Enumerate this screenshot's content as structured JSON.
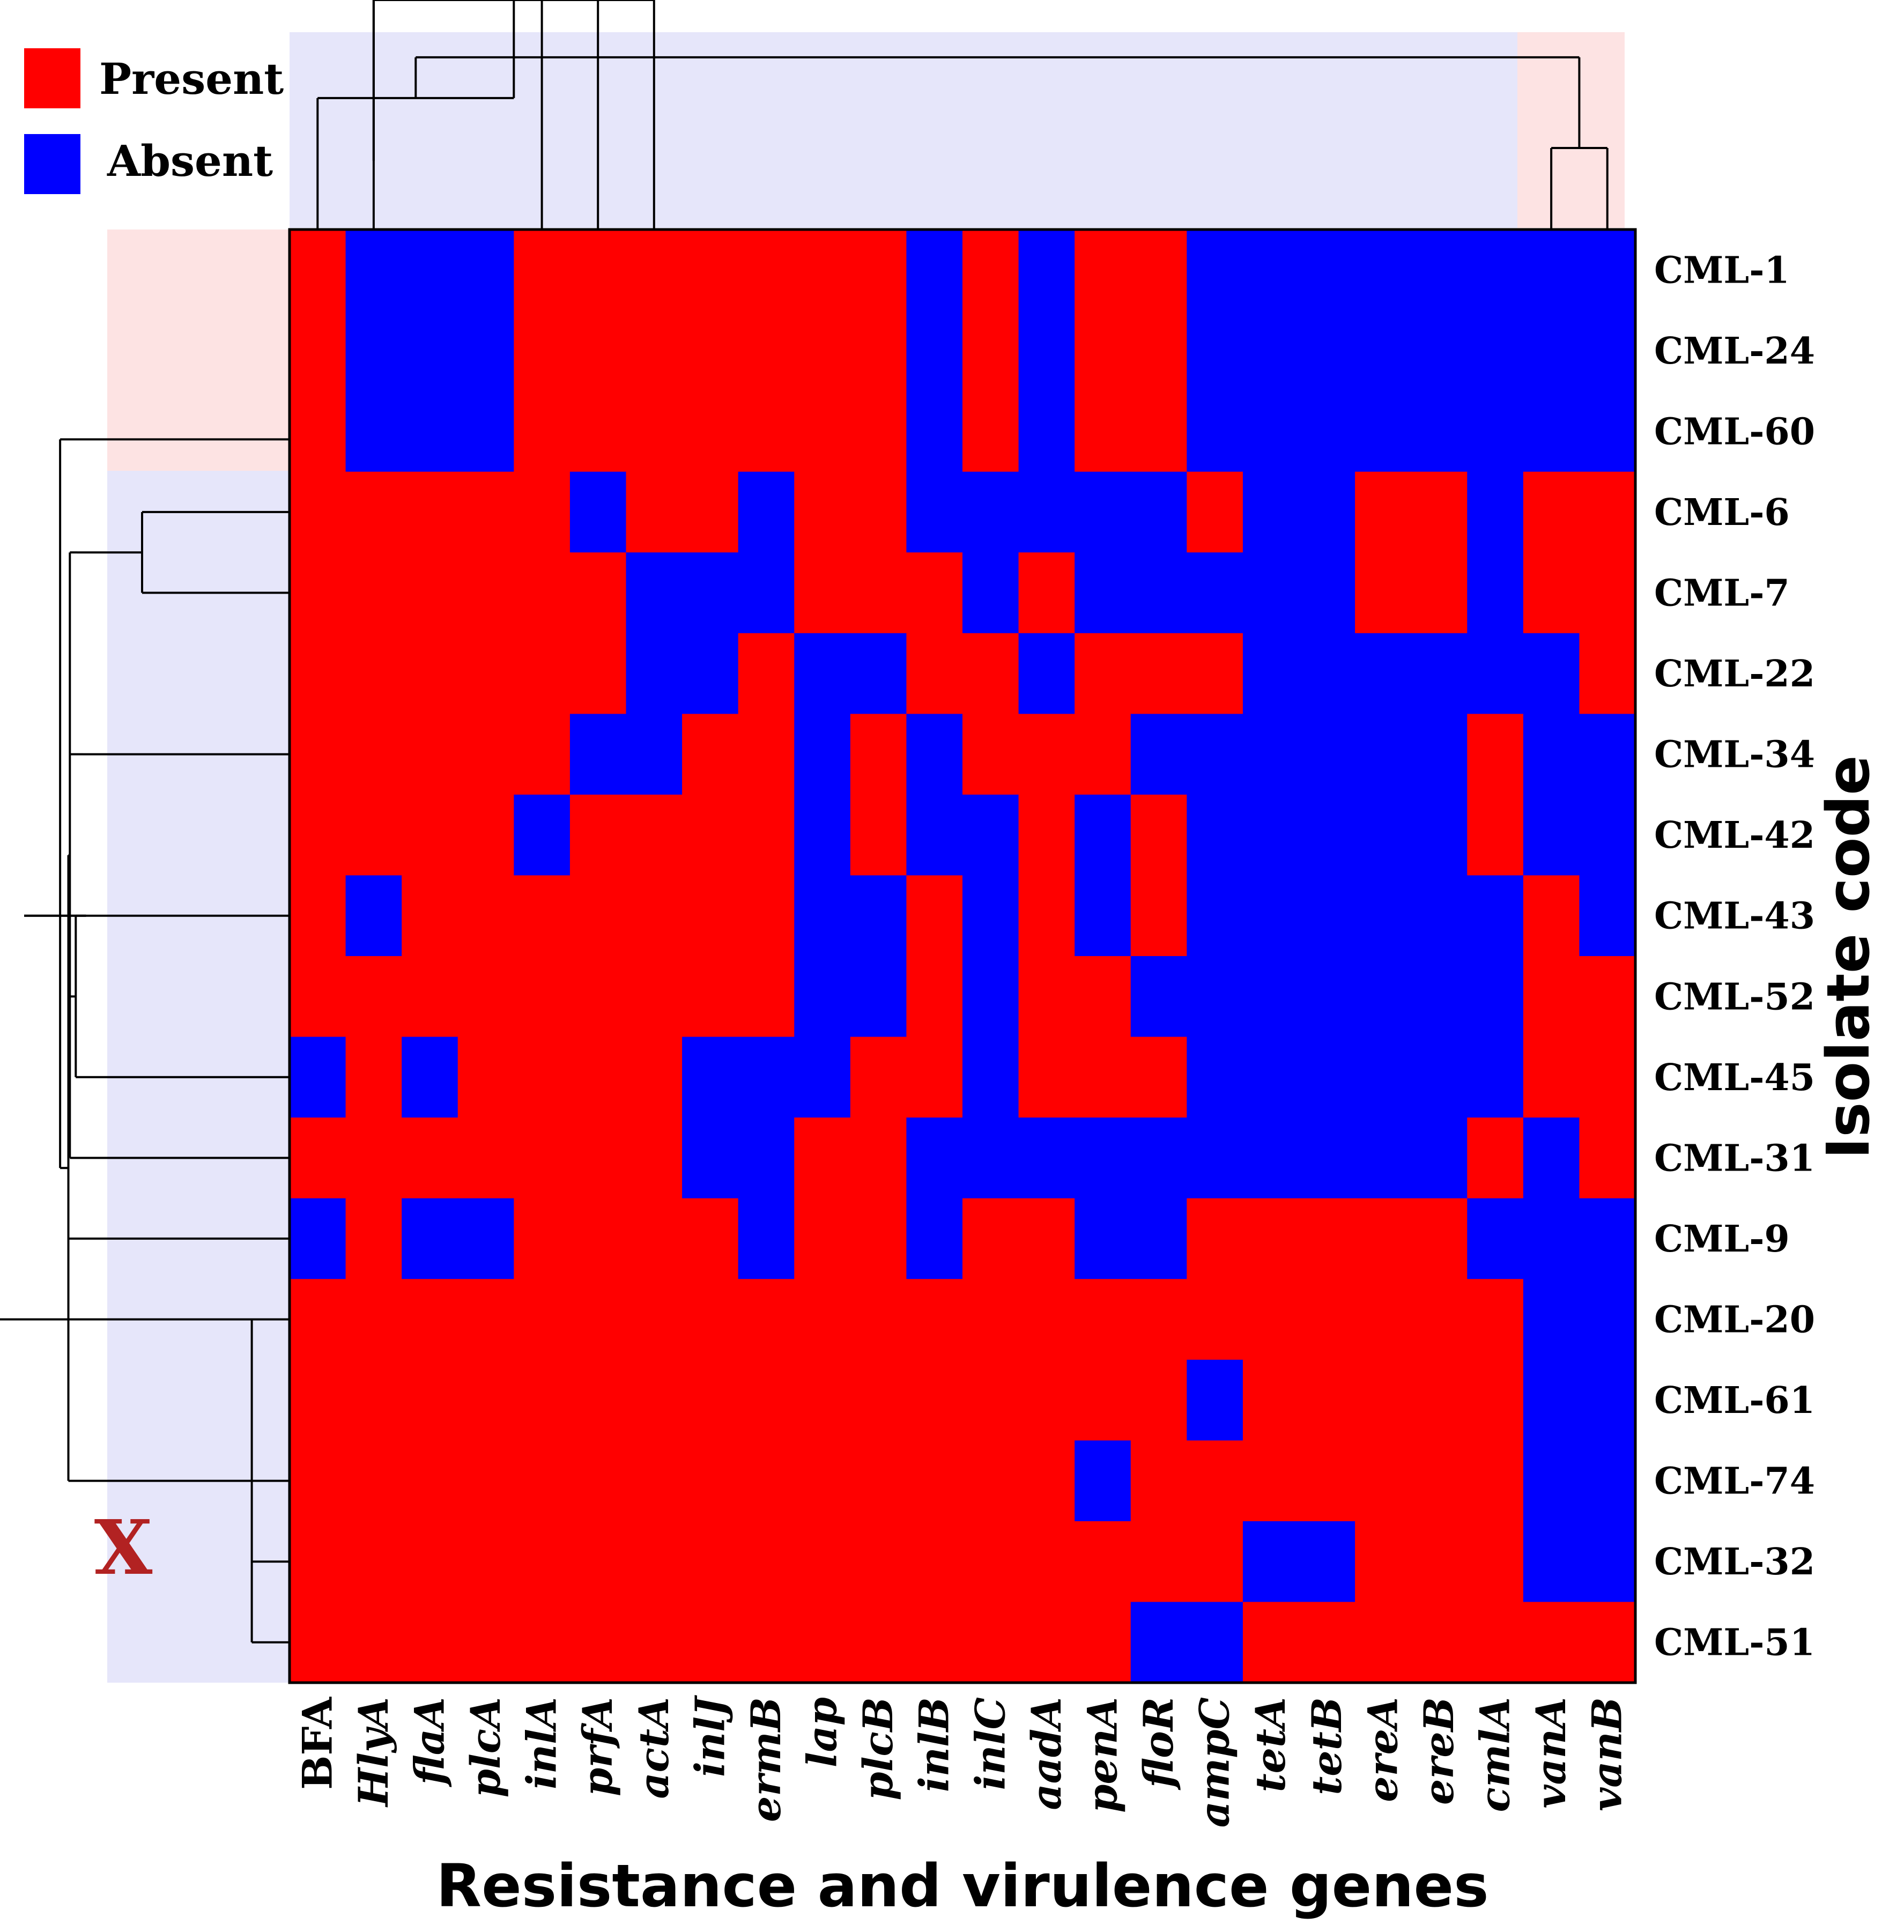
{
  "chart_data": {
    "type": "heatmap",
    "xlabel": "Resistance and virulence genes",
    "ylabel": "Isolate code",
    "columns": [
      "BFA",
      "HlyA",
      "flaA",
      "plcA",
      "inlA",
      "prfA",
      "actA",
      "inlJ",
      "ermB",
      "lap",
      "plcB",
      "inlB",
      "inlC",
      "aadA",
      "penA",
      "floR",
      "ampC",
      "tetA",
      "tetB",
      "ereA",
      "ereB",
      "cmlA",
      "vanA",
      "vanB"
    ],
    "italic_columns": [
      "HlyA",
      "flaA",
      "plcA",
      "inlA",
      "prfA",
      "actA",
      "inlJ",
      "ermB",
      "lap",
      "plcB",
      "inlB",
      "inlC",
      "aadA",
      "penA",
      "floR",
      "ampC",
      "tetA",
      "tetB",
      "ereA",
      "ereB",
      "cmlA",
      "vanA",
      "vanB"
    ],
    "rows": [
      "CML-1",
      "CML-24",
      "CML-60",
      "CML-6",
      "CML-7",
      "CML-22",
      "CML-34",
      "CML-42",
      "CML-43",
      "CML-52",
      "CML-45",
      "CML-31",
      "CML-9",
      "CML-20",
      "CML-61",
      "CML-74",
      "CML-32",
      "CML-51"
    ],
    "matrix": [
      [
        1,
        0,
        0,
        0,
        1,
        1,
        1,
        1,
        1,
        1,
        1,
        0,
        1,
        0,
        1,
        1,
        0,
        0,
        0,
        0,
        0,
        0,
        0,
        0
      ],
      [
        1,
        0,
        0,
        0,
        1,
        1,
        1,
        1,
        1,
        1,
        1,
        0,
        1,
        0,
        1,
        1,
        0,
        0,
        0,
        0,
        0,
        0,
        0,
        0
      ],
      [
        1,
        0,
        0,
        0,
        1,
        1,
        1,
        1,
        1,
        1,
        1,
        0,
        1,
        0,
        1,
        1,
        0,
        0,
        0,
        0,
        0,
        0,
        0,
        0
      ],
      [
        1,
        1,
        1,
        1,
        1,
        0,
        1,
        1,
        0,
        1,
        1,
        0,
        0,
        0,
        0,
        0,
        1,
        0,
        0,
        1,
        1,
        0,
        1,
        1
      ],
      [
        1,
        1,
        1,
        1,
        1,
        1,
        0,
        0,
        0,
        1,
        1,
        1,
        0,
        1,
        0,
        0,
        0,
        0,
        0,
        1,
        1,
        0,
        1,
        1
      ],
      [
        1,
        1,
        1,
        1,
        1,
        1,
        0,
        0,
        1,
        0,
        0,
        1,
        1,
        0,
        1,
        1,
        1,
        0,
        0,
        0,
        0,
        0,
        0,
        1
      ],
      [
        1,
        1,
        1,
        1,
        1,
        0,
        0,
        1,
        1,
        0,
        1,
        0,
        1,
        1,
        1,
        0,
        0,
        0,
        0,
        0,
        0,
        1,
        0,
        0
      ],
      [
        1,
        1,
        1,
        1,
        0,
        1,
        1,
        1,
        1,
        0,
        1,
        0,
        0,
        1,
        0,
        1,
        0,
        0,
        0,
        0,
        0,
        1,
        0,
        0
      ],
      [
        1,
        0,
        1,
        1,
        1,
        1,
        1,
        1,
        1,
        0,
        0,
        1,
        0,
        1,
        0,
        1,
        0,
        0,
        0,
        0,
        0,
        0,
        1,
        0
      ],
      [
        1,
        1,
        1,
        1,
        1,
        1,
        1,
        1,
        1,
        0,
        0,
        1,
        0,
        1,
        1,
        0,
        0,
        0,
        0,
        0,
        0,
        0,
        1,
        1
      ],
      [
        0,
        1,
        0,
        1,
        1,
        1,
        1,
        0,
        0,
        0,
        1,
        1,
        0,
        1,
        1,
        1,
        0,
        0,
        0,
        0,
        0,
        0,
        1,
        1
      ],
      [
        1,
        1,
        1,
        1,
        1,
        1,
        1,
        0,
        0,
        1,
        1,
        0,
        0,
        0,
        0,
        0,
        0,
        0,
        0,
        0,
        0,
        1,
        0,
        1
      ],
      [
        0,
        1,
        0,
        0,
        1,
        1,
        1,
        1,
        0,
        1,
        1,
        0,
        1,
        1,
        0,
        0,
        1,
        1,
        1,
        1,
        1,
        0,
        0,
        0
      ],
      [
        1,
        1,
        1,
        1,
        1,
        1,
        1,
        1,
        1,
        1,
        1,
        1,
        1,
        1,
        1,
        1,
        1,
        1,
        1,
        1,
        1,
        1,
        0,
        0
      ],
      [
        1,
        1,
        1,
        1,
        1,
        1,
        1,
        1,
        1,
        1,
        1,
        1,
        1,
        1,
        1,
        1,
        0,
        1,
        1,
        1,
        1,
        1,
        0,
        0
      ],
      [
        1,
        1,
        1,
        1,
        1,
        1,
        1,
        1,
        1,
        1,
        1,
        1,
        1,
        1,
        0,
        1,
        1,
        1,
        1,
        1,
        1,
        1,
        0,
        0
      ],
      [
        1,
        1,
        1,
        1,
        1,
        1,
        1,
        1,
        1,
        1,
        1,
        1,
        1,
        1,
        1,
        1,
        1,
        0,
        0,
        1,
        1,
        1,
        0,
        0
      ],
      [
        1,
        1,
        1,
        1,
        1,
        1,
        1,
        1,
        1,
        1,
        1,
        1,
        1,
        1,
        1,
        0,
        0,
        1,
        1,
        1,
        1,
        1,
        1,
        1
      ]
    ],
    "legend": [
      {
        "label": "Present",
        "value": 1,
        "color": "#ff0000"
      },
      {
        "label": "Absent",
        "value": 0,
        "color": "#0000ff"
      }
    ],
    "marker_label": "X",
    "marker_row": "CML-32",
    "colors": {
      "present": "#ff0000",
      "absent": "#0000ff",
      "cluster_a": "#fde3e3",
      "cluster_b": "#e6e6fa",
      "marker": "#b22222"
    }
  }
}
